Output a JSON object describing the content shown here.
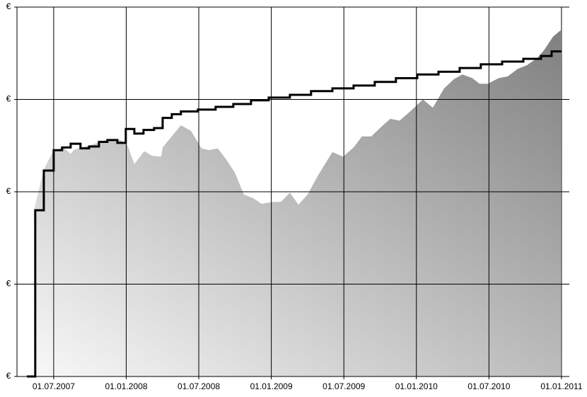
{
  "chart_data": {
    "type": "area-step",
    "xlim": [
      2007.247,
      2011.054
    ],
    "ylim": [
      0,
      4
    ],
    "xticks": [
      {
        "value": 2007.5,
        "label": "01.07.2007"
      },
      {
        "value": 2008.0,
        "label": "01.01.2008"
      },
      {
        "value": 2008.5,
        "label": "01.07.2008"
      },
      {
        "value": 2009.0,
        "label": "01.01.2009"
      },
      {
        "value": 2009.5,
        "label": "01.07.2009"
      },
      {
        "value": 2010.0,
        "label": "01.01.2010"
      },
      {
        "value": 2010.5,
        "label": "01.07.2010"
      },
      {
        "value": 2011.0,
        "label": "01.01.2011"
      }
    ],
    "yticks": [
      {
        "value": 0,
        "label": "€"
      },
      {
        "value": 1,
        "label": "€"
      },
      {
        "value": 2,
        "label": "€"
      },
      {
        "value": 3,
        "label": "€"
      },
      {
        "value": 4,
        "label": "€"
      }
    ],
    "grid": true,
    "series": [
      {
        "kind": "area",
        "color": "#999999",
        "x": [
          2007.364,
          2007.432,
          2007.5,
          2007.568,
          2007.617,
          2007.636,
          2007.69,
          2007.763,
          2007.861,
          2007.958,
          2008.007,
          2008.056,
          2008.124,
          2008.178,
          2008.241,
          2008.251,
          2008.324,
          2008.377,
          2008.446,
          2008.519,
          2008.568,
          2008.631,
          2008.689,
          2008.748,
          2008.811,
          2008.875,
          2008.933,
          2009.006,
          2009.065,
          2009.128,
          2009.187,
          2009.25,
          2009.323,
          2009.421,
          2009.494,
          2009.567,
          2009.625,
          2009.689,
          2009.762,
          2009.82,
          2009.884,
          2009.957,
          2010.045,
          2010.113,
          2010.191,
          2010.259,
          2010.318,
          2010.386,
          2010.435,
          2010.493,
          2010.566,
          2010.63,
          2010.698,
          2010.761,
          2010.834,
          2010.883,
          2010.942,
          2010.995
        ],
        "values": [
          1.8,
          2.24,
          2.45,
          2.48,
          2.41,
          2.45,
          2.48,
          2.51,
          2.56,
          2.56,
          2.51,
          2.3,
          2.44,
          2.39,
          2.38,
          2.48,
          2.62,
          2.72,
          2.66,
          2.47,
          2.45,
          2.47,
          2.35,
          2.21,
          1.97,
          1.93,
          1.87,
          1.89,
          1.89,
          1.99,
          1.86,
          1.97,
          2.18,
          2.43,
          2.38,
          2.48,
          2.6,
          2.6,
          2.71,
          2.79,
          2.77,
          2.87,
          3.0,
          2.91,
          3.12,
          3.22,
          3.27,
          3.23,
          3.17,
          3.17,
          3.23,
          3.25,
          3.33,
          3.37,
          3.45,
          3.54,
          3.68,
          3.75
        ]
      },
      {
        "kind": "step",
        "color": "#000000",
        "x": [
          2007.315,
          2007.373,
          2007.432,
          2007.5,
          2007.558,
          2007.617,
          2007.685,
          2007.744,
          2007.812,
          2007.87,
          2007.939,
          2007.997,
          2008.056,
          2008.119,
          2008.192,
          2008.251,
          2008.314,
          2008.377,
          2008.494,
          2008.616,
          2008.738,
          2008.86,
          2008.982,
          2009.128,
          2009.274,
          2009.421,
          2009.567,
          2009.713,
          2009.859,
          2010.006,
          2010.152,
          2010.298,
          2010.444,
          2010.591,
          2010.737,
          2010.859,
          2010.932,
          2011.0
        ],
        "values": [
          0,
          1.8,
          2.23,
          2.45,
          2.48,
          2.52,
          2.47,
          2.49,
          2.54,
          2.56,
          2.53,
          2.68,
          2.63,
          2.67,
          2.69,
          2.8,
          2.84,
          2.87,
          2.89,
          2.92,
          2.95,
          2.99,
          3.02,
          3.05,
          3.09,
          3.12,
          3.15,
          3.19,
          3.23,
          3.27,
          3.3,
          3.34,
          3.38,
          3.41,
          3.44,
          3.47,
          3.52,
          3.52
        ]
      }
    ]
  }
}
